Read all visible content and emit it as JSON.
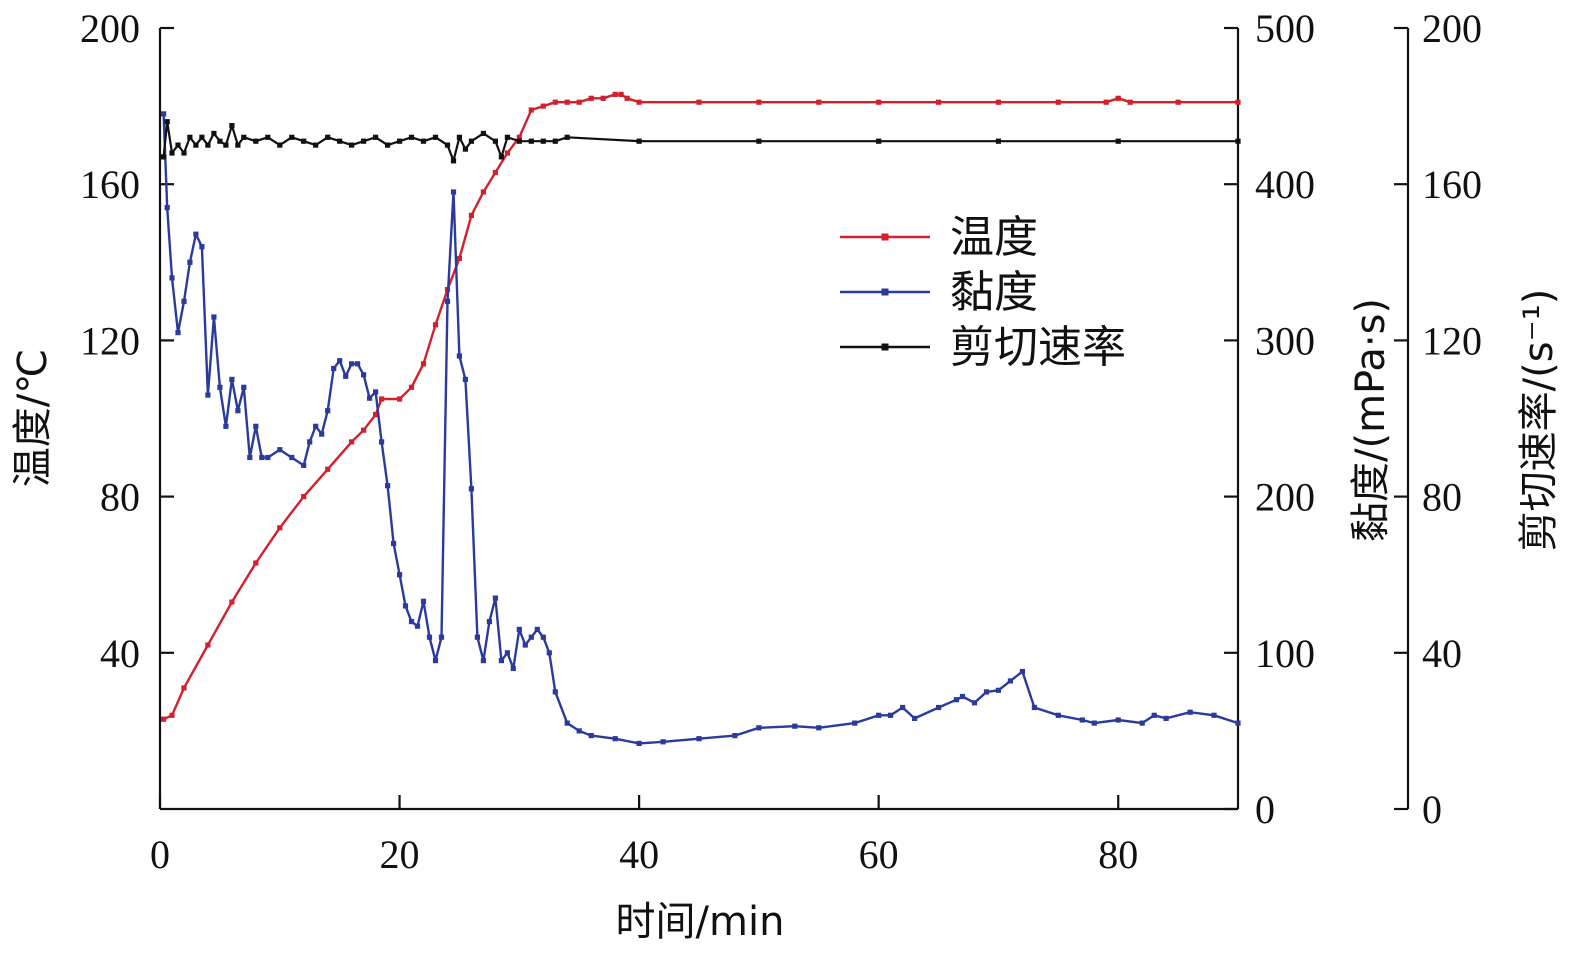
{
  "chart_data": {
    "type": "line",
    "xlabel": "时间/min",
    "ylabel_left": "温度/℃",
    "ylabel_right1": "黏度/(mPa·s)",
    "ylabel_right2": "剪切速率/(s⁻¹)",
    "xlim": [
      0,
      90
    ],
    "x_ticks": [
      "0",
      "20",
      "40",
      "60",
      "80"
    ],
    "y_left_lim": [
      0,
      200
    ],
    "y_left_ticks": [
      "0",
      "40",
      "80",
      "120",
      "160",
      "200"
    ],
    "y_right1_lim": [
      0,
      500
    ],
    "y_right1_ticks": [
      "0",
      "100",
      "200",
      "300",
      "400",
      "500"
    ],
    "y_right2_lim": [
      0,
      200
    ],
    "y_right2_ticks": [
      "0",
      "40",
      "80",
      "120",
      "160",
      "200"
    ],
    "grid": false,
    "legend_position": "upper-right-center",
    "series": [
      {
        "name": "温度",
        "axis": "left",
        "color": "#d4202c",
        "x": [
          0.3,
          1,
          2,
          4,
          6,
          8,
          10,
          12,
          14,
          16,
          17,
          18,
          18.5,
          20,
          21,
          22,
          23,
          24,
          25,
          26,
          27,
          28,
          29,
          30,
          31,
          32,
          33,
          34,
          35,
          36,
          37,
          38,
          38.5,
          39,
          40,
          45,
          50,
          55,
          60,
          65,
          70,
          75,
          79,
          80,
          81,
          85,
          90
        ],
        "y": [
          23,
          24,
          31,
          42,
          53,
          63,
          72,
          80,
          87,
          94,
          97,
          101,
          105,
          105,
          108,
          114,
          124,
          133,
          141,
          152,
          158,
          163,
          168,
          172,
          179,
          180,
          181,
          181,
          181,
          182,
          182,
          183,
          183,
          182,
          181,
          181,
          181,
          181,
          181,
          181,
          181,
          181,
          181,
          182,
          181,
          181,
          181
        ]
      },
      {
        "name": "黏度",
        "axis": "right1",
        "color": "#2a3b9c",
        "x": [
          0.3,
          0.6,
          1,
          1.5,
          2,
          2.5,
          3,
          3.5,
          4,
          4.5,
          5,
          5.5,
          6,
          6.5,
          7,
          7.5,
          8,
          8.5,
          9,
          10,
          11,
          12,
          12.5,
          13,
          13.5,
          14,
          14.5,
          15,
          15.5,
          16,
          16.5,
          17,
          17.5,
          18,
          18.5,
          19,
          19.5,
          20,
          20.5,
          21,
          21.5,
          22,
          22.5,
          23,
          23.5,
          24,
          24.5,
          25,
          25.5,
          26,
          26.5,
          27,
          27.5,
          28,
          28.5,
          29,
          29.5,
          30,
          30.5,
          31,
          31.5,
          32,
          32.5,
          33,
          34,
          35,
          36,
          38,
          40,
          42,
          45,
          48,
          50,
          53,
          55,
          58,
          60,
          61,
          62,
          63,
          65,
          66.5,
          67,
          68,
          69,
          70,
          71,
          72,
          73,
          75,
          77,
          78,
          80,
          82,
          83,
          84,
          86,
          88,
          90
        ],
        "y": [
          445,
          385,
          340,
          305,
          325,
          350,
          368,
          360,
          265,
          315,
          270,
          245,
          275,
          255,
          270,
          225,
          245,
          225,
          225,
          230,
          225,
          220,
          235,
          245,
          240,
          255,
          282,
          287,
          277,
          285,
          285,
          278,
          263,
          267,
          235,
          207,
          170,
          150,
          130,
          120,
          117,
          133,
          110,
          95,
          110,
          325,
          395,
          290,
          275,
          205,
          110,
          95,
          120,
          135,
          95,
          100,
          90,
          115,
          105,
          110,
          115,
          110,
          100,
          75,
          55,
          50,
          47,
          45,
          42,
          43,
          45,
          47,
          52,
          53,
          52,
          55,
          60,
          60,
          65,
          58,
          65,
          70,
          72,
          68,
          75,
          76,
          82,
          88,
          65,
          60,
          57,
          55,
          57,
          55,
          60,
          58,
          62,
          60,
          55
        ]
      },
      {
        "name": "剪切速率",
        "axis": "right2",
        "color": "#111111",
        "x": [
          0.3,
          0.6,
          1,
          1.5,
          2,
          2.5,
          3,
          3.5,
          4,
          4.5,
          5,
          5.5,
          6,
          6.5,
          7,
          8,
          9,
          10,
          11,
          12,
          13,
          14,
          15,
          16,
          17,
          18,
          19,
          20,
          21,
          22,
          23,
          24,
          24.5,
          25,
          25.5,
          26,
          27,
          28,
          28.5,
          29,
          30,
          31,
          32,
          33,
          34,
          40,
          50,
          60,
          70,
          80,
          90
        ],
        "y": [
          167,
          176,
          168,
          170,
          168,
          172,
          170,
          172,
          170,
          173,
          171,
          170,
          175,
          170,
          172,
          171,
          172,
          170,
          172,
          171,
          170,
          172,
          171,
          170,
          171,
          172,
          170,
          171,
          172,
          171,
          172,
          170,
          166,
          172,
          169,
          171,
          173,
          171,
          167,
          172,
          171,
          171,
          171,
          171,
          172,
          171,
          171,
          171,
          171,
          171,
          171
        ]
      }
    ]
  }
}
